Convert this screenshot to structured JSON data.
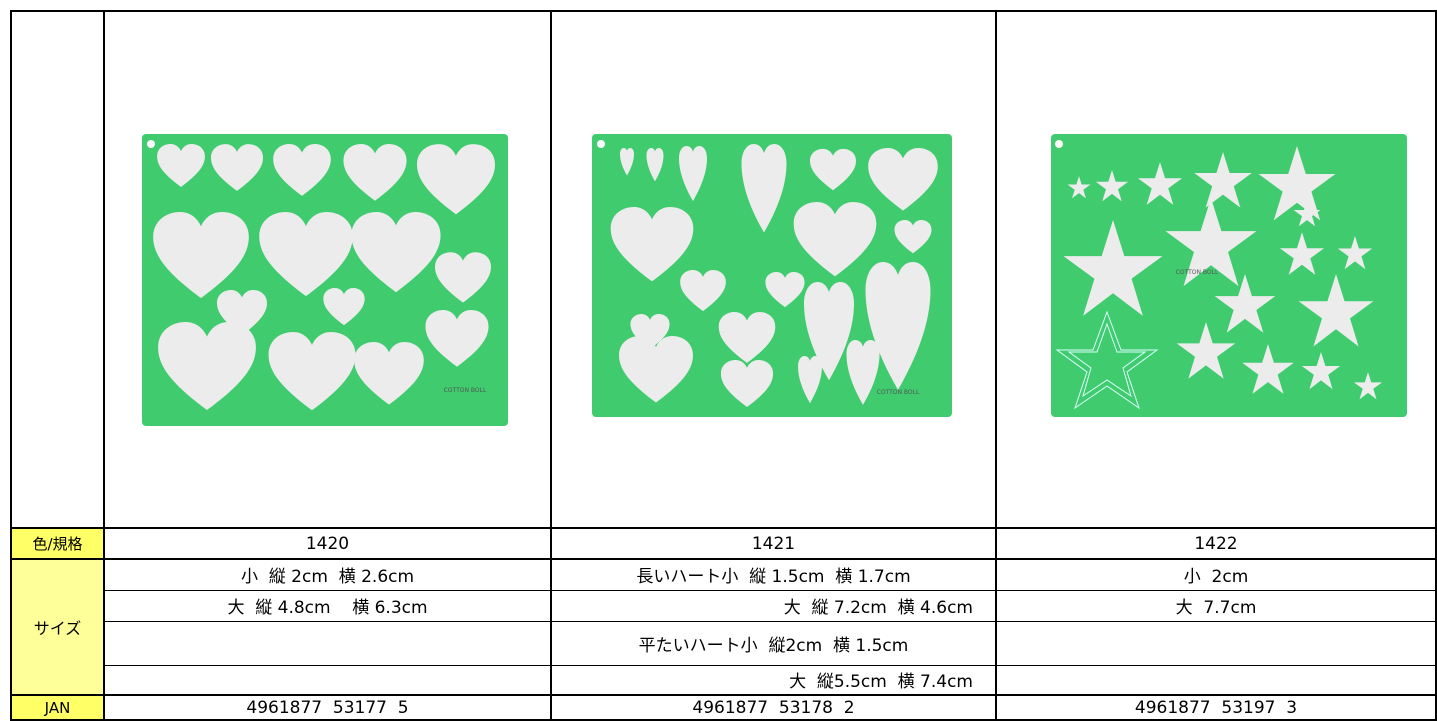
{
  "table": {
    "brand": "COTTON BOLL",
    "label_header": "色/規格",
    "models": [
      "1420",
      "1421",
      "1422"
    ],
    "size_label": "サイズ",
    "sizes": [
      [
        "小  縦 2cm  横 2.6cm",
        "大  縦 4.8cm    横 6.3cm"
      ],
      [
        "長いハート小  縦 1.5cm  横 1.7cm",
        "大  縦 7.2cm  横 4.6cm",
        "平たいハート小  縦2cm  横 1.5cm",
        "大  縦5.5cm  横 7.4cm"
      ],
      [
        "小  2cm",
        "大  7.7cm"
      ]
    ],
    "jan_label": "JAN",
    "jan": [
      "4961877  53177  5",
      "4961877  53178  2",
      "4961877  53197  3"
    ]
  }
}
